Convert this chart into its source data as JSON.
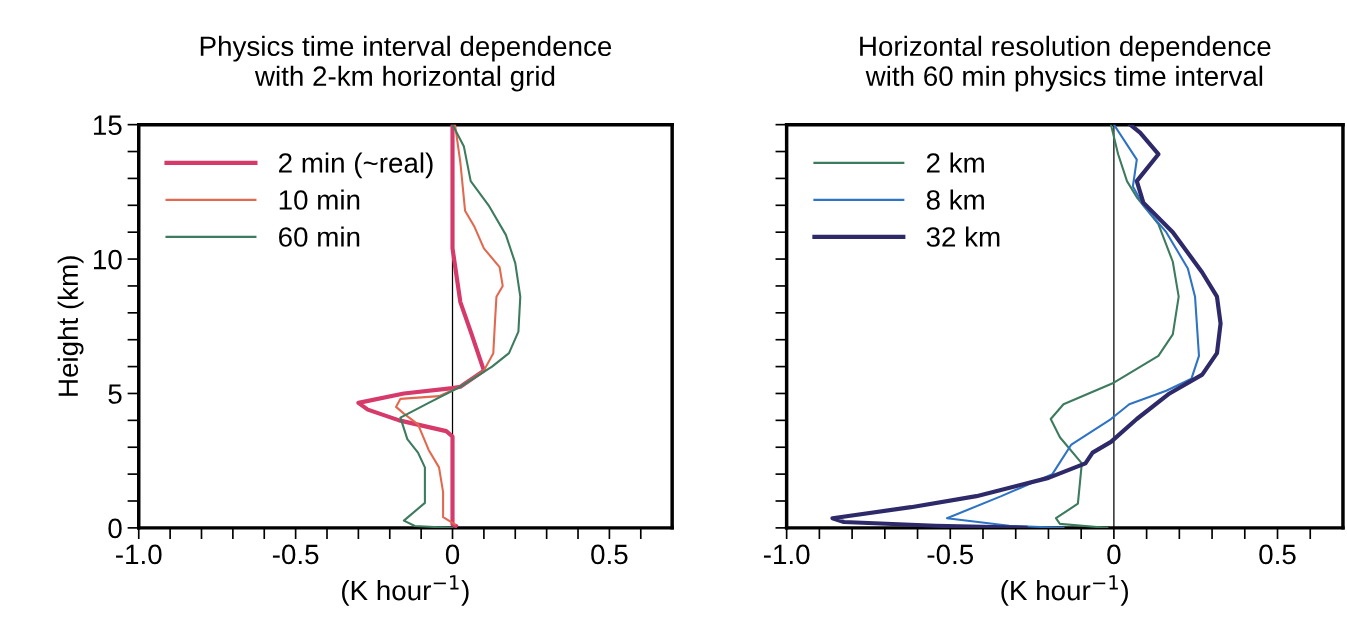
{
  "chart_data": [
    {
      "type": "line",
      "title": "Physics time interval dependence\nwith 2-km horizontal grid",
      "xlabel": "(K hour$^{−1}$)",
      "ylabel": "Height (km)",
      "xlim": [
        -1.0,
        0.7
      ],
      "ylim": [
        0,
        15
      ],
      "xticks": [
        {
          "value": -1.0,
          "label": "-1.0"
        },
        {
          "value": -0.9,
          "label": null
        },
        {
          "value": -0.8,
          "label": null
        },
        {
          "value": -0.7,
          "label": null
        },
        {
          "value": -0.6,
          "label": null
        },
        {
          "value": -0.5,
          "label": "-0.5"
        },
        {
          "value": -0.4,
          "label": null
        },
        {
          "value": -0.3,
          "label": null
        },
        {
          "value": -0.2,
          "label": null
        },
        {
          "value": -0.1,
          "label": null
        },
        0,
        {
          "value": 0.1,
          "label": null
        },
        {
          "value": 0.2,
          "label": null
        },
        {
          "value": 0.3,
          "label": null
        },
        {
          "value": 0.4,
          "label": null
        },
        0.5,
        {
          "value": 0.6,
          "label": null
        }
      ],
      "yticks": [
        0,
        {
          "value": 1,
          "label": null
        },
        {
          "value": 2,
          "label": null
        },
        {
          "value": 3,
          "label": null
        },
        {
          "value": 4,
          "label": null
        },
        5,
        {
          "value": 6,
          "label": null
        },
        {
          "value": 7,
          "label": null
        },
        {
          "value": 8,
          "label": null
        },
        {
          "value": 9,
          "label": null
        },
        10,
        {
          "value": 11,
          "label": null
        },
        {
          "value": 12,
          "label": null
        },
        {
          "value": 13,
          "label": null
        },
        {
          "value": 14,
          "label": null
        },
        15
      ],
      "legend": "top left",
      "grid": false,
      "ref_lines": [
        {
          "axis": "x",
          "value": 0,
          "color": "#000000"
        }
      ],
      "series": [
        {
          "name": "2 min (~real)",
          "color": "#d63a6a",
          "x": [
            0,
            0,
            0.025,
            0.058,
            0.1,
            0.025,
            0,
            -0.155,
            -0.3,
            -0.27,
            -0.17,
            -0.02,
            0,
            0,
            0.01
          ],
          "values": [
            15,
            10.4,
            8.4,
            7.3,
            5.85,
            5.25,
            5.2,
            5.0,
            4.65,
            4.4,
            4.0,
            3.6,
            3.4,
            0.13,
            0.07
          ]
        },
        {
          "name": "10 min",
          "color": "#e2694f",
          "x": [
            0.008,
            0.025,
            0.04,
            0.07,
            0.1,
            0.15,
            0.16,
            0.14,
            0.135,
            0.13,
            0.1,
            0.025,
            -0.043,
            -0.166,
            -0.18,
            -0.155,
            -0.11,
            -0.076,
            -0.043,
            -0.03,
            -0.03,
            0.008
          ],
          "values": [
            15,
            13.6,
            11.8,
            11.2,
            10.4,
            9.7,
            9.0,
            8.6,
            7.6,
            6.5,
            5.85,
            5.25,
            4.9,
            4.8,
            4.5,
            4.25,
            3.85,
            2.9,
            2.25,
            1.33,
            0.4,
            0.13
          ]
        },
        {
          "name": "60 min",
          "color": "#3d7b5e",
          "x": [
            0,
            0.036,
            0.058,
            0.115,
            0.17,
            0.2,
            0.216,
            0.21,
            0.18,
            0.126,
            0.025,
            -0.076,
            -0.166,
            -0.144,
            -0.11,
            -0.088,
            -0.088,
            -0.155,
            -0.12,
            0
          ],
          "values": [
            15,
            14.2,
            12.9,
            12.0,
            10.9,
            9.85,
            8.6,
            7.3,
            6.5,
            6.0,
            5.25,
            4.65,
            4.1,
            3.3,
            2.8,
            2.25,
            0.93,
            0.27,
            0.07,
            0
          ]
        }
      ]
    },
    {
      "type": "line",
      "title": "Horizontal resolution dependence\nwith 60 min physics time interval",
      "xlabel": "(K hour$^{−1}$)",
      "xlim": [
        -1.0,
        0.7
      ],
      "ylim": [
        0,
        15
      ],
      "tick_labels": "x",
      "xticks": [
        {
          "value": -1.0,
          "label": "-1.0"
        },
        {
          "value": -0.9,
          "label": null
        },
        {
          "value": -0.8,
          "label": null
        },
        {
          "value": -0.7,
          "label": null
        },
        {
          "value": -0.6,
          "label": null
        },
        {
          "value": -0.5,
          "label": "-0.5"
        },
        {
          "value": -0.4,
          "label": null
        },
        {
          "value": -0.3,
          "label": null
        },
        {
          "value": -0.2,
          "label": null
        },
        {
          "value": -0.1,
          "label": null
        },
        0,
        {
          "value": 0.1,
          "label": null
        },
        {
          "value": 0.2,
          "label": null
        },
        {
          "value": 0.3,
          "label": null
        },
        {
          "value": 0.4,
          "label": null
        },
        0.5,
        {
          "value": 0.6,
          "label": null
        }
      ],
      "yticks": [
        {
          "value": 0,
          "label": null
        },
        {
          "value": 1,
          "label": null
        },
        {
          "value": 2,
          "label": null
        },
        {
          "value": 3,
          "label": null
        },
        {
          "value": 4,
          "label": null
        },
        {
          "value": 5,
          "label": null
        },
        {
          "value": 6,
          "label": null
        },
        {
          "value": 7,
          "label": null
        },
        {
          "value": 8,
          "label": null
        },
        {
          "value": 9,
          "label": null
        },
        {
          "value": 10,
          "label": null
        },
        {
          "value": 11,
          "label": null
        },
        {
          "value": 12,
          "label": null
        },
        {
          "value": 13,
          "label": null
        },
        {
          "value": 14,
          "label": null
        },
        {
          "value": 15,
          "label": null
        }
      ],
      "legend": "top left",
      "grid": false,
      "ref_lines": [
        {
          "axis": "x",
          "value": 0,
          "color": "#000000"
        }
      ],
      "series": [
        {
          "name": "2 km",
          "color": "#3d7b5e",
          "x": [
            -0.009,
            0.013,
            0.04,
            0.07,
            0.136,
            0.18,
            0.198,
            0.18,
            0.136,
            0,
            -0.154,
            -0.193,
            -0.165,
            -0.098,
            -0.11,
            -0.177,
            -0.165,
            -0.02
          ],
          "values": [
            15,
            13.9,
            12.9,
            12.3,
            11.3,
            9.9,
            8.6,
            7.2,
            6.4,
            5.4,
            4.6,
            4.05,
            3.37,
            2.4,
            0.9,
            0.36,
            0.15,
            0
          ]
        },
        {
          "name": "8 km",
          "color": "#2f73c4",
          "x": [
            0,
            0.07,
            0.058,
            0.09,
            0.16,
            0.226,
            0.248,
            0.26,
            0.237,
            0.16,
            0.047,
            -0.009,
            -0.13,
            -0.188,
            -0.344,
            -0.51,
            -0.32,
            -0.154
          ],
          "values": [
            15,
            13.7,
            12.7,
            12.0,
            11.0,
            9.65,
            8.6,
            6.4,
            5.55,
            5.1,
            4.6,
            4.05,
            3.1,
            2.0,
            1.18,
            0.36,
            0.08,
            0
          ]
        },
        {
          "name": "32 km",
          "color": "#2e2a6a",
          "x": [
            0.05,
            0.08,
            0.136,
            0.07,
            0.09,
            0.18,
            0.27,
            0.315,
            0.326,
            0.315,
            0.27,
            0.17,
            0.07,
            -0.009,
            -0.065,
            -0.087,
            -0.2,
            -0.42,
            -0.62,
            -0.86,
            -0.825,
            -0.545,
            -0.27
          ],
          "values": [
            15,
            14.7,
            13.9,
            12.9,
            12.1,
            11.0,
            9.5,
            8.6,
            7.6,
            6.5,
            5.7,
            5.0,
            4.05,
            3.2,
            2.8,
            2.4,
            1.86,
            1.18,
            0.77,
            0.36,
            0.22,
            0.08,
            0
          ]
        }
      ]
    }
  ]
}
